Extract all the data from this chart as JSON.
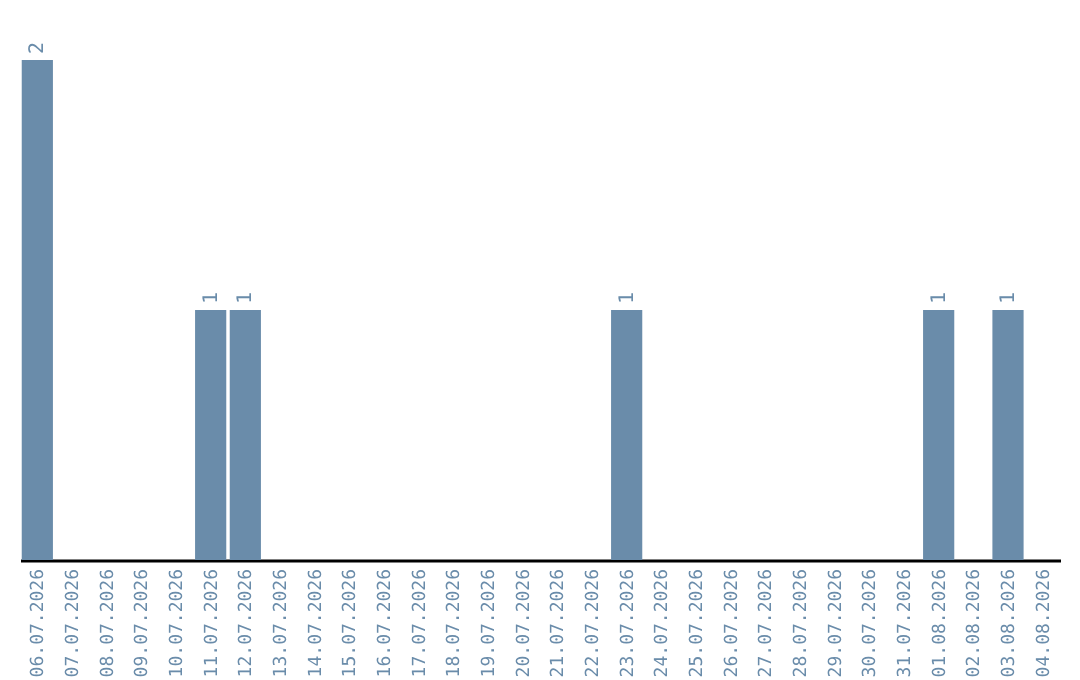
{
  "chart_data": {
    "type": "bar",
    "categories": [
      "06.07.2026",
      "07.07.2026",
      "08.07.2026",
      "09.07.2026",
      "10.07.2026",
      "11.07.2026",
      "12.07.2026",
      "13.07.2026",
      "14.07.2026",
      "15.07.2026",
      "16.07.2026",
      "17.07.2026",
      "18.07.2026",
      "19.07.2026",
      "20.07.2026",
      "21.07.2026",
      "22.07.2026",
      "23.07.2026",
      "24.07.2026",
      "25.07.2026",
      "26.07.2026",
      "27.07.2026",
      "28.07.2026",
      "29.07.2026",
      "30.07.2026",
      "31.07.2026",
      "01.08.2026",
      "02.08.2026",
      "03.08.2026",
      "04.08.2026"
    ],
    "values": [
      2,
      0,
      0,
      0,
      0,
      1,
      1,
      0,
      0,
      0,
      0,
      0,
      0,
      0,
      0,
      0,
      0,
      1,
      0,
      0,
      0,
      0,
      0,
      0,
      0,
      0,
      1,
      0,
      1,
      0
    ],
    "value_labels": [
      "2",
      null,
      null,
      null,
      null,
      "1",
      "1",
      null,
      null,
      null,
      null,
      null,
      null,
      null,
      null,
      null,
      null,
      "1",
      null,
      null,
      null,
      null,
      null,
      null,
      null,
      null,
      "1",
      null,
      "1",
      null
    ],
    "color": "#6a8caa",
    "ylim": [
      0,
      2
    ],
    "tick_labels": "x",
    "grid": false
  }
}
